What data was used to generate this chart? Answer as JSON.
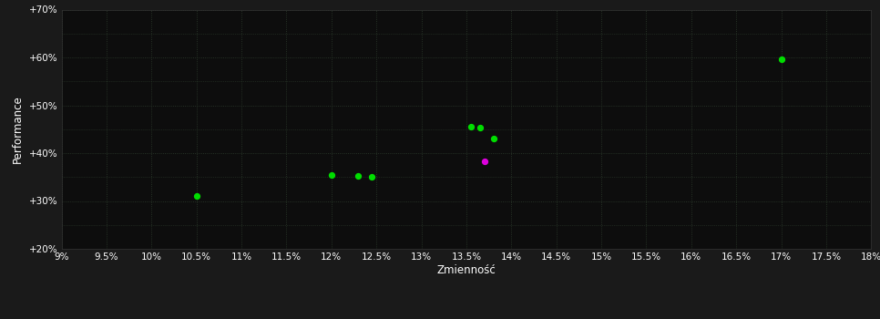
{
  "background_color": "#1a1a1a",
  "plot_bg_color": "#0d0d0d",
  "text_color": "#ffffff",
  "xlabel": "Zmienność",
  "ylabel": "Performance",
  "xlim": [
    0.09,
    0.18
  ],
  "ylim": [
    0.2,
    0.7
  ],
  "points_green": [
    [
      0.105,
      0.31
    ],
    [
      0.12,
      0.355
    ],
    [
      0.123,
      0.353
    ],
    [
      0.1245,
      0.351
    ],
    [
      0.1355,
      0.456
    ],
    [
      0.1365,
      0.454
    ],
    [
      0.138,
      0.43
    ],
    [
      0.17,
      0.597
    ]
  ],
  "points_magenta": [
    [
      0.137,
      0.383
    ]
  ],
  "point_size": 18,
  "green_color": "#00dd00",
  "magenta_color": "#dd00dd"
}
